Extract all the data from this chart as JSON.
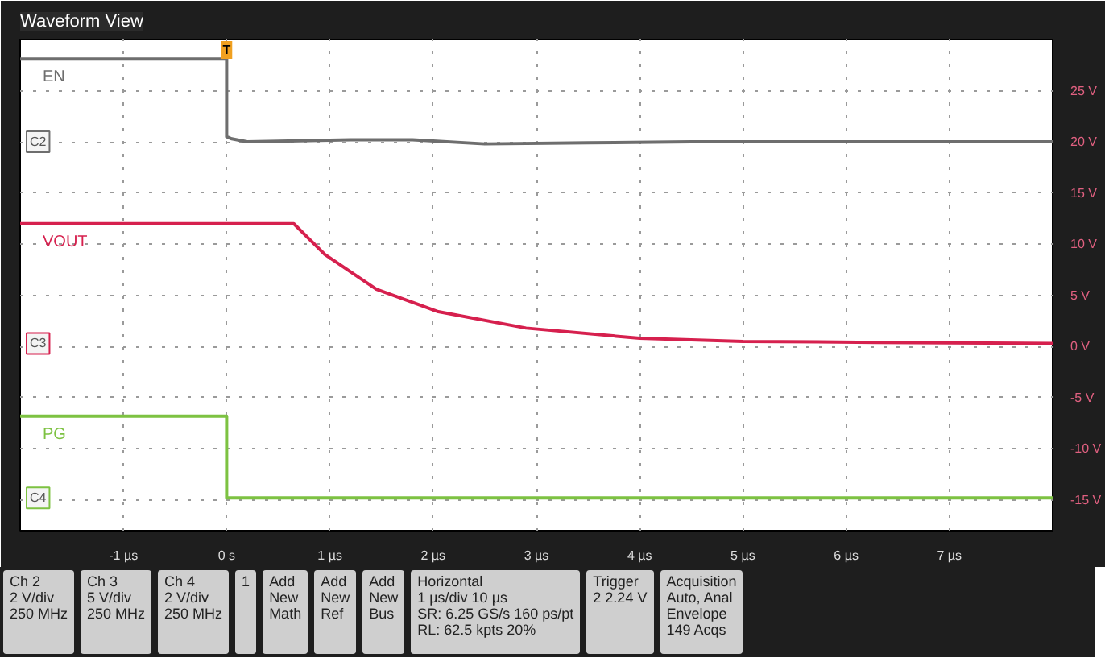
{
  "chart_data": {
    "type": "line",
    "title": "Waveform View",
    "xlim": [
      -2,
      8
    ],
    "ylim": [
      -18,
      30
    ],
    "xticks": [
      {
        "value": -1,
        "label": "-1 µs"
      },
      {
        "value": 0,
        "label": "0 s"
      },
      {
        "value": 1,
        "label": "1 µs"
      },
      {
        "value": 2,
        "label": "2 µs"
      },
      {
        "value": 3,
        "label": "3 µs"
      },
      {
        "value": 4,
        "label": "4 µs"
      },
      {
        "value": 5,
        "label": "5 µs"
      },
      {
        "value": 6,
        "label": "6 µs"
      },
      {
        "value": 7,
        "label": "7 µs"
      }
    ],
    "yticks": [
      {
        "value": 25,
        "label": "25 V"
      },
      {
        "value": 20,
        "label": "20 V"
      },
      {
        "value": 15,
        "label": "15 V"
      },
      {
        "value": 10,
        "label": "10 V"
      },
      {
        "value": 5,
        "label": "5 V"
      },
      {
        "value": 0,
        "label": "0 V"
      },
      {
        "value": -5,
        "label": "-5 V"
      },
      {
        "value": -10,
        "label": "-10 V"
      },
      {
        "value": -15,
        "label": "-15 V"
      }
    ],
    "grid": true,
    "series": [
      {
        "name": "EN",
        "color": "#6e6e6e",
        "x": [
          -2,
          0,
          0,
          0.05,
          0.2,
          1.2,
          1.8,
          2.5,
          3.5,
          4.5,
          8
        ],
        "values": [
          28.1,
          28.1,
          20.5,
          20.3,
          20,
          20.2,
          20.2,
          19.8,
          19.9,
          20,
          20
        ]
      },
      {
        "name": "VOUT",
        "color": "#d6204e",
        "x": [
          -2,
          0.65,
          0.95,
          1.45,
          2.05,
          2.9,
          4.0,
          5.0,
          6.3,
          8
        ],
        "values": [
          12,
          12,
          9,
          5.6,
          3.4,
          1.8,
          0.8,
          0.5,
          0.4,
          0.3
        ]
      },
      {
        "name": "PG",
        "color": "#7dc242",
        "x": [
          -2,
          0,
          0,
          8
        ],
        "values": [
          -6.8,
          -6.8,
          -14.8,
          -14.8
        ]
      }
    ],
    "annotations": [
      "C2",
      "C3",
      "C4",
      "T",
      "Ch 2\n2 V/div\n250 MHz",
      "Ch 3\n5 V/div\n250 MHz",
      "Ch 4\n2 V/div\n250 MHz",
      "1",
      "Add\nNew\nMath",
      "Add\nNew\nRef",
      "Add\nNew\nBus",
      "Horizontal\n1 µs/div   10 µs\nSR: 6.25 GS/s   160 ps/pt\nRL: 62.5 kpts   20%",
      "Trigger\n2   2.24 V",
      "Acquisition\nAuto,   Anal\nEnvelope\n149 Acqs"
    ]
  }
}
